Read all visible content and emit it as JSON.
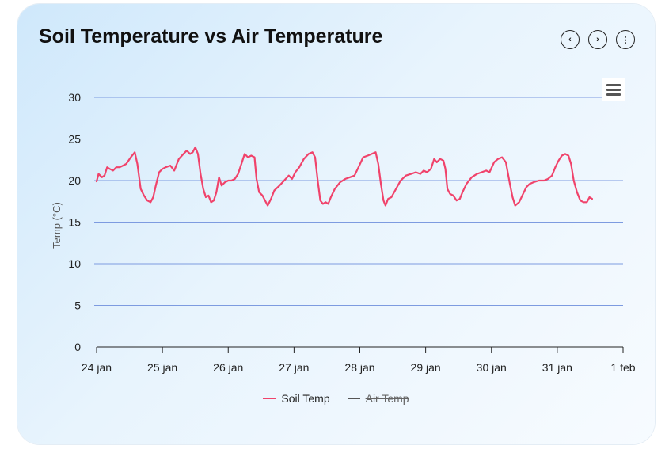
{
  "chart_data": {
    "type": "line",
    "title": "Soil Temperature vs Air Temperature",
    "ylabel": "Temp (°C)",
    "xlabel": "",
    "ylim": [
      0,
      30
    ],
    "y_ticks": [
      0,
      5,
      10,
      15,
      20,
      25,
      30
    ],
    "x_ticks": [
      "24 jan",
      "25 jan",
      "26 jan",
      "27 jan",
      "28 jan",
      "29 jan",
      "30 jan",
      "31 jan",
      "1 feb"
    ],
    "grid": true,
    "legend_position": "bottom-center",
    "series": [
      {
        "name": "Soil Temp",
        "color": "#f0436b",
        "visible": true,
        "points": [
          [
            0.0,
            19.9
          ],
          [
            0.03,
            20.8
          ],
          [
            0.08,
            20.4
          ],
          [
            0.12,
            20.6
          ],
          [
            0.16,
            21.6
          ],
          [
            0.2,
            21.4
          ],
          [
            0.25,
            21.2
          ],
          [
            0.3,
            21.6
          ],
          [
            0.35,
            21.6
          ],
          [
            0.4,
            21.8
          ],
          [
            0.45,
            22.0
          ],
          [
            0.52,
            22.8
          ],
          [
            0.58,
            23.4
          ],
          [
            0.62,
            22.0
          ],
          [
            0.67,
            19.0
          ],
          [
            0.72,
            18.2
          ],
          [
            0.77,
            17.6
          ],
          [
            0.82,
            17.4
          ],
          [
            0.86,
            18.0
          ],
          [
            0.9,
            19.4
          ],
          [
            0.95,
            21.0
          ],
          [
            1.0,
            21.4
          ],
          [
            1.05,
            21.6
          ],
          [
            1.12,
            21.8
          ],
          [
            1.18,
            21.2
          ],
          [
            1.25,
            22.6
          ],
          [
            1.32,
            23.2
          ],
          [
            1.37,
            23.6
          ],
          [
            1.42,
            23.2
          ],
          [
            1.46,
            23.4
          ],
          [
            1.5,
            24.0
          ],
          [
            1.54,
            23.2
          ],
          [
            1.58,
            20.8
          ],
          [
            1.62,
            19.0
          ],
          [
            1.66,
            18.0
          ],
          [
            1.7,
            18.2
          ],
          [
            1.74,
            17.4
          ],
          [
            1.78,
            17.6
          ],
          [
            1.82,
            18.6
          ],
          [
            1.86,
            20.4
          ],
          [
            1.9,
            19.4
          ],
          [
            1.95,
            19.8
          ],
          [
            2.0,
            20.0
          ],
          [
            2.05,
            20.0
          ],
          [
            2.1,
            20.2
          ],
          [
            2.15,
            20.8
          ],
          [
            2.2,
            22.0
          ],
          [
            2.25,
            23.2
          ],
          [
            2.3,
            22.8
          ],
          [
            2.35,
            23.0
          ],
          [
            2.4,
            22.8
          ],
          [
            2.43,
            20.2
          ],
          [
            2.47,
            18.6
          ],
          [
            2.52,
            18.2
          ],
          [
            2.56,
            17.6
          ],
          [
            2.6,
            17.0
          ],
          [
            2.65,
            17.8
          ],
          [
            2.7,
            18.8
          ],
          [
            2.78,
            19.4
          ],
          [
            2.85,
            20.0
          ],
          [
            2.92,
            20.6
          ],
          [
            2.97,
            20.2
          ],
          [
            3.02,
            21.0
          ],
          [
            3.08,
            21.6
          ],
          [
            3.15,
            22.6
          ],
          [
            3.22,
            23.2
          ],
          [
            3.28,
            23.4
          ],
          [
            3.32,
            22.8
          ],
          [
            3.36,
            20.0
          ],
          [
            3.4,
            17.6
          ],
          [
            3.44,
            17.2
          ],
          [
            3.48,
            17.4
          ],
          [
            3.52,
            17.2
          ],
          [
            3.56,
            18.0
          ],
          [
            3.62,
            19.0
          ],
          [
            3.7,
            19.8
          ],
          [
            3.78,
            20.2
          ],
          [
            3.85,
            20.4
          ],
          [
            3.92,
            20.6
          ],
          [
            3.98,
            21.6
          ],
          [
            4.05,
            22.8
          ],
          [
            4.12,
            23.0
          ],
          [
            4.18,
            23.2
          ],
          [
            4.24,
            23.4
          ],
          [
            4.28,
            22.0
          ],
          [
            4.32,
            19.6
          ],
          [
            4.36,
            17.6
          ],
          [
            4.39,
            17.0
          ],
          [
            4.43,
            17.8
          ],
          [
            4.48,
            18.0
          ],
          [
            4.55,
            19.0
          ],
          [
            4.62,
            20.0
          ],
          [
            4.7,
            20.6
          ],
          [
            4.78,
            20.8
          ],
          [
            4.85,
            21.0
          ],
          [
            4.92,
            20.8
          ],
          [
            4.97,
            21.2
          ],
          [
            5.02,
            21.0
          ],
          [
            5.08,
            21.4
          ],
          [
            5.13,
            22.6
          ],
          [
            5.17,
            22.2
          ],
          [
            5.22,
            22.6
          ],
          [
            5.27,
            22.4
          ],
          [
            5.3,
            21.4
          ],
          [
            5.33,
            19.0
          ],
          [
            5.37,
            18.4
          ],
          [
            5.42,
            18.2
          ],
          [
            5.47,
            17.6
          ],
          [
            5.52,
            17.8
          ],
          [
            5.56,
            18.6
          ],
          [
            5.62,
            19.6
          ],
          [
            5.7,
            20.4
          ],
          [
            5.78,
            20.8
          ],
          [
            5.85,
            21.0
          ],
          [
            5.92,
            21.2
          ],
          [
            5.97,
            21.0
          ],
          [
            6.04,
            22.2
          ],
          [
            6.1,
            22.6
          ],
          [
            6.16,
            22.8
          ],
          [
            6.22,
            22.2
          ],
          [
            6.28,
            19.6
          ],
          [
            6.32,
            18.0
          ],
          [
            6.36,
            17.0
          ],
          [
            6.42,
            17.4
          ],
          [
            6.48,
            18.4
          ],
          [
            6.53,
            19.2
          ],
          [
            6.58,
            19.6
          ],
          [
            6.64,
            19.8
          ],
          [
            6.72,
            20.0
          ],
          [
            6.8,
            20.0
          ],
          [
            6.86,
            20.2
          ],
          [
            6.92,
            20.6
          ],
          [
            6.97,
            21.6
          ],
          [
            7.02,
            22.4
          ],
          [
            7.07,
            23.0
          ],
          [
            7.12,
            23.2
          ],
          [
            7.17,
            23.0
          ],
          [
            7.21,
            22.0
          ],
          [
            7.25,
            20.0
          ],
          [
            7.3,
            18.6
          ],
          [
            7.35,
            17.6
          ],
          [
            7.4,
            17.4
          ],
          [
            7.45,
            17.4
          ],
          [
            7.49,
            18.0
          ],
          [
            7.53,
            17.8
          ]
        ]
      },
      {
        "name": "Air Temp",
        "color": "#555555",
        "visible": false
      }
    ]
  },
  "controls": {
    "prev_glyph": "‹",
    "next_glyph": "›",
    "more_glyph": "⋮"
  }
}
